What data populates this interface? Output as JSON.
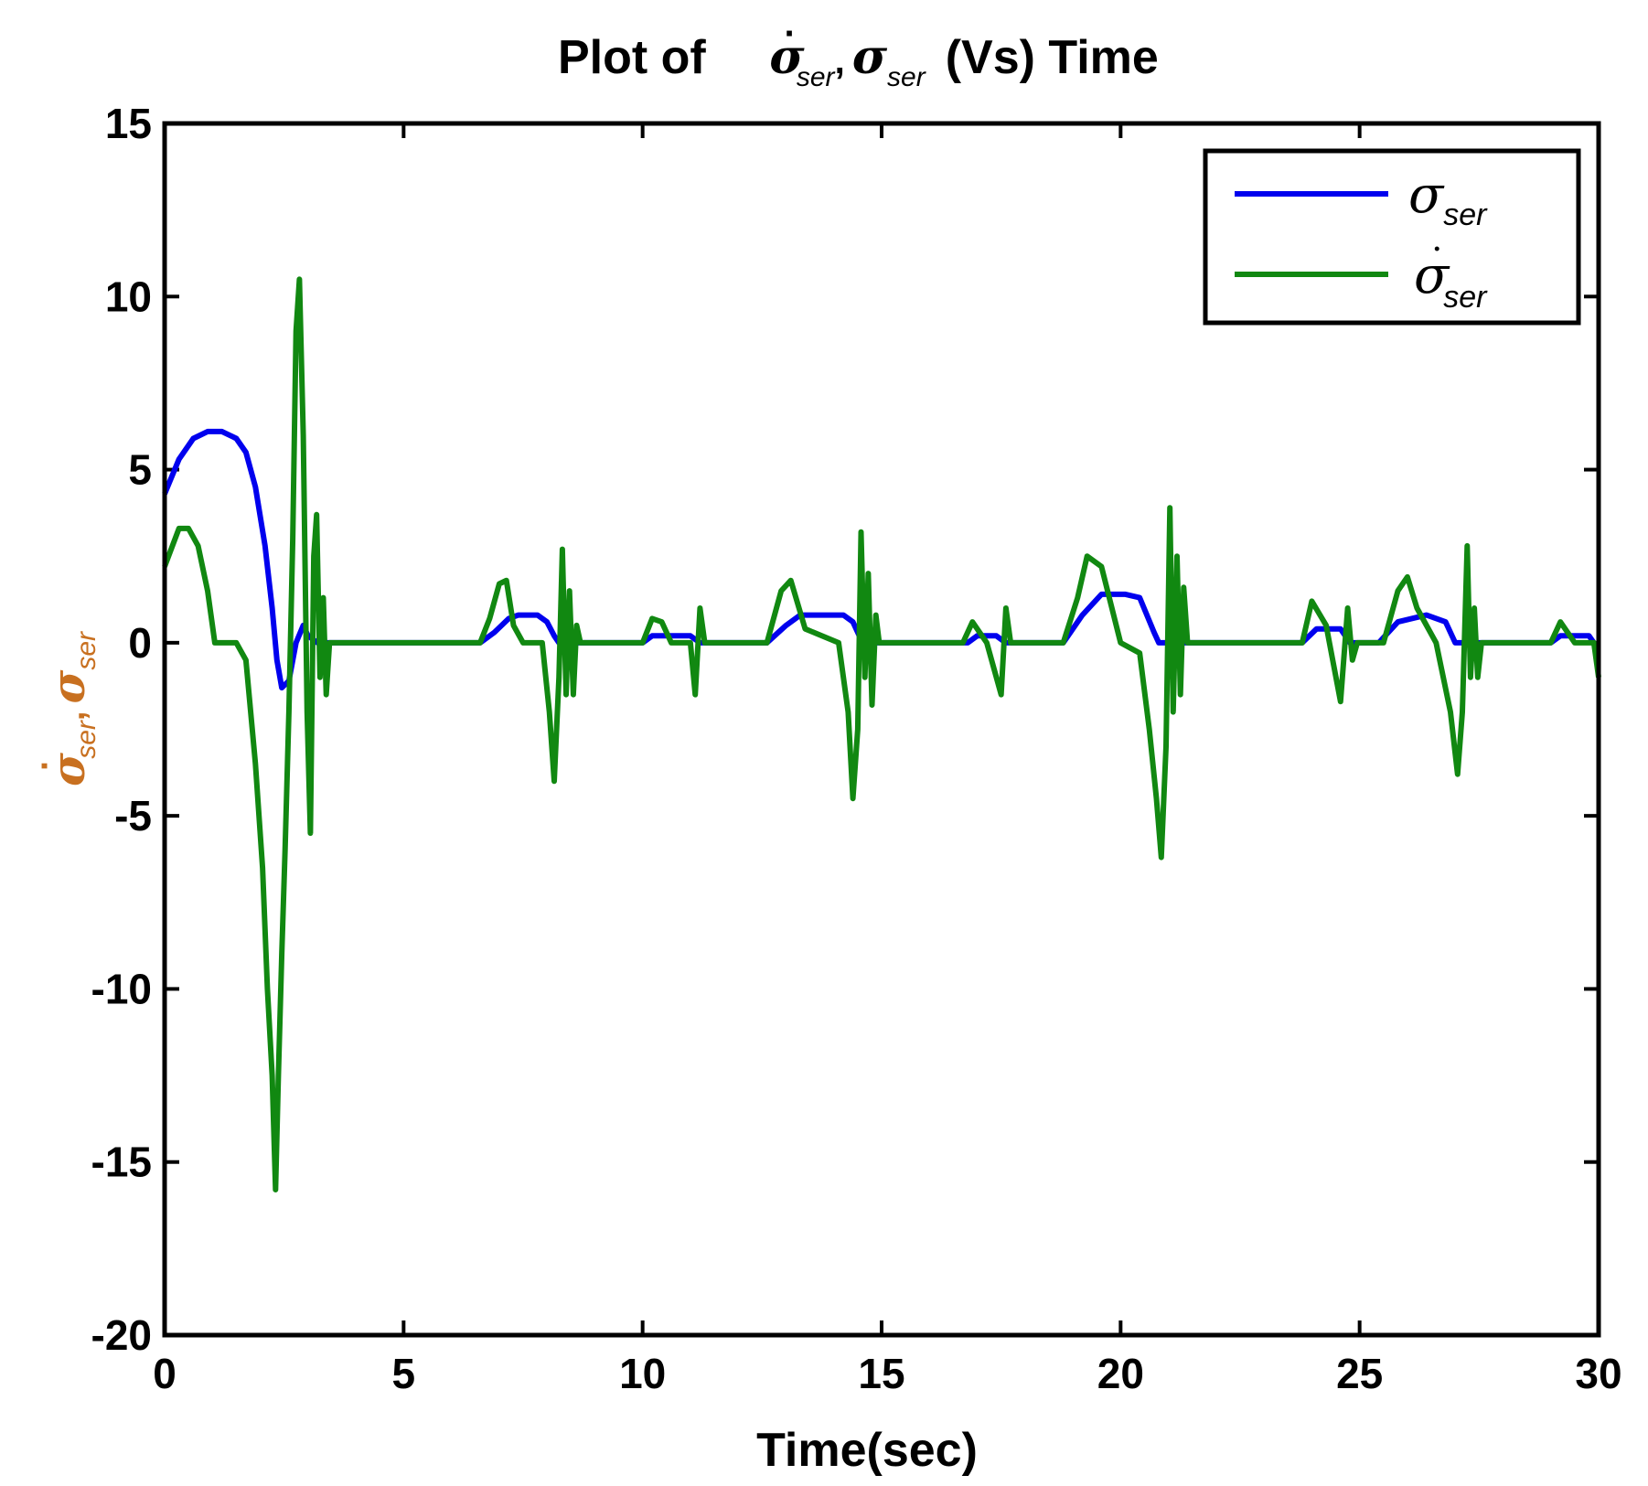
{
  "chart_data": {
    "type": "line",
    "title": {
      "prefix": "Plot of",
      "sigma": "σ",
      "dot": "·",
      "sub": "ser",
      "comma": ",",
      "suffix": "(Vs) Time"
    },
    "xlabel": "Time(sec)",
    "ylabel": {
      "sigma": "σ",
      "dot": "·",
      "sub": "ser",
      "comma": ","
    },
    "xlim": [
      0,
      30
    ],
    "ylim": [
      -20,
      15
    ],
    "xticks": [
      0,
      5,
      10,
      15,
      20,
      25,
      30
    ],
    "yticks": [
      -20,
      -15,
      -10,
      -5,
      0,
      5,
      10,
      15
    ],
    "grid": false,
    "legend": {
      "position": "top-right",
      "entries": [
        {
          "symbol": "σ",
          "dot": "",
          "sub": "ser"
        },
        {
          "symbol": "σ",
          "dot": "·",
          "sub": "ser"
        }
      ]
    },
    "series": [
      {
        "name": "sigma_ser",
        "color": "#0000ee",
        "x": [
          0,
          0.3,
          0.6,
          0.9,
          1.2,
          1.5,
          1.7,
          1.9,
          2.1,
          2.25,
          2.35,
          2.45,
          2.6,
          2.75,
          2.9,
          3.0,
          3.2,
          6.6,
          6.9,
          7.2,
          7.4,
          7.8,
          8.0,
          8.15,
          8.25,
          10.0,
          10.2,
          10.5,
          11.0,
          11.2,
          12.6,
          13.0,
          13.3,
          14.2,
          14.4,
          14.6,
          16.8,
          17.0,
          17.4,
          17.6,
          18.8,
          19.2,
          19.6,
          20.1,
          20.4,
          20.7,
          20.8,
          23.8,
          24.1,
          24.6,
          24.8,
          25.4,
          25.8,
          26.4,
          26.8,
          27.0,
          29.0,
          29.2,
          29.8,
          30.0
        ],
        "values": [
          4.3,
          5.3,
          5.9,
          6.1,
          6.1,
          5.9,
          5.5,
          4.5,
          2.8,
          1.0,
          -0.5,
          -1.3,
          -1.1,
          0.0,
          0.5,
          0.2,
          0.0,
          0.0,
          0.3,
          0.7,
          0.8,
          0.8,
          0.6,
          0.2,
          0.0,
          0.0,
          0.2,
          0.2,
          0.2,
          0.0,
          0.0,
          0.5,
          0.8,
          0.8,
          0.6,
          0.0,
          0.0,
          0.2,
          0.2,
          0.0,
          0.0,
          0.8,
          1.4,
          1.4,
          1.3,
          0.3,
          0.0,
          0.0,
          0.4,
          0.4,
          0.0,
          0.0,
          0.6,
          0.8,
          0.6,
          0.0,
          0.0,
          0.2,
          0.2,
          -0.2
        ]
      },
      {
        "name": "sigma_dot_ser",
        "color": "#118811",
        "x": [
          0,
          0.3,
          0.5,
          0.7,
          0.9,
          1.05,
          1.5,
          1.7,
          1.9,
          2.05,
          2.15,
          2.25,
          2.32,
          2.38,
          2.45,
          2.52,
          2.6,
          2.68,
          2.75,
          2.82,
          2.9,
          2.98,
          3.05,
          3.12,
          3.18,
          3.25,
          3.32,
          3.38,
          3.45,
          6.6,
          6.8,
          7.0,
          7.15,
          7.3,
          7.5,
          7.9,
          8.05,
          8.15,
          8.25,
          8.32,
          8.4,
          8.47,
          8.55,
          8.62,
          8.7,
          10.0,
          10.2,
          10.4,
          10.6,
          11.0,
          11.1,
          11.2,
          11.3,
          12.6,
          12.9,
          13.1,
          13.4,
          14.1,
          14.3,
          14.4,
          14.5,
          14.57,
          14.65,
          14.72,
          14.8,
          14.88,
          14.95,
          16.7,
          16.9,
          17.2,
          17.5,
          17.6,
          17.7,
          18.8,
          19.1,
          19.3,
          19.6,
          20.0,
          20.4,
          20.6,
          20.75,
          20.85,
          20.95,
          21.03,
          21.1,
          21.18,
          21.25,
          21.32,
          21.4,
          23.8,
          24.0,
          24.3,
          24.6,
          24.75,
          24.85,
          24.95,
          25.5,
          25.8,
          26.0,
          26.2,
          26.6,
          26.9,
          27.05,
          27.15,
          27.25,
          27.32,
          27.4,
          27.47,
          27.55,
          29.0,
          29.2,
          29.5,
          29.9,
          30.0
        ],
        "values": [
          2.2,
          3.3,
          3.3,
          2.8,
          1.5,
          0.0,
          0.0,
          -0.5,
          -3.5,
          -6.5,
          -10.0,
          -12.5,
          -15.8,
          -12.5,
          -9.0,
          -6.0,
          -2.0,
          3.0,
          9.0,
          10.5,
          6.0,
          -2.0,
          -5.5,
          2.5,
          3.7,
          -1.0,
          1.3,
          -1.5,
          0.0,
          0.0,
          0.7,
          1.7,
          1.8,
          0.5,
          0.0,
          0.0,
          -2.0,
          -4.0,
          -1.0,
          2.7,
          -1.5,
          1.5,
          -1.5,
          0.5,
          0.0,
          0.0,
          0.7,
          0.6,
          0.0,
          0.0,
          -1.5,
          1.0,
          0.0,
          0.0,
          1.5,
          1.8,
          0.4,
          0.0,
          -2.0,
          -4.5,
          -2.5,
          3.2,
          -1.0,
          2.0,
          -1.8,
          0.8,
          0.0,
          0.0,
          0.6,
          0.0,
          -1.5,
          1.0,
          0.0,
          0.0,
          1.3,
          2.5,
          2.2,
          0.0,
          -0.3,
          -2.5,
          -4.5,
          -6.2,
          -3.0,
          3.9,
          -2.0,
          2.5,
          -1.5,
          1.6,
          0.0,
          0.0,
          1.2,
          0.5,
          -1.7,
          1.0,
          -0.5,
          0.0,
          0.0,
          1.5,
          1.9,
          1.0,
          0.0,
          -2.0,
          -3.8,
          -2.0,
          2.8,
          -1.0,
          1.0,
          -1.0,
          0.0,
          0.0,
          0.6,
          0.0,
          0.0,
          -1.0
        ]
      }
    ]
  }
}
